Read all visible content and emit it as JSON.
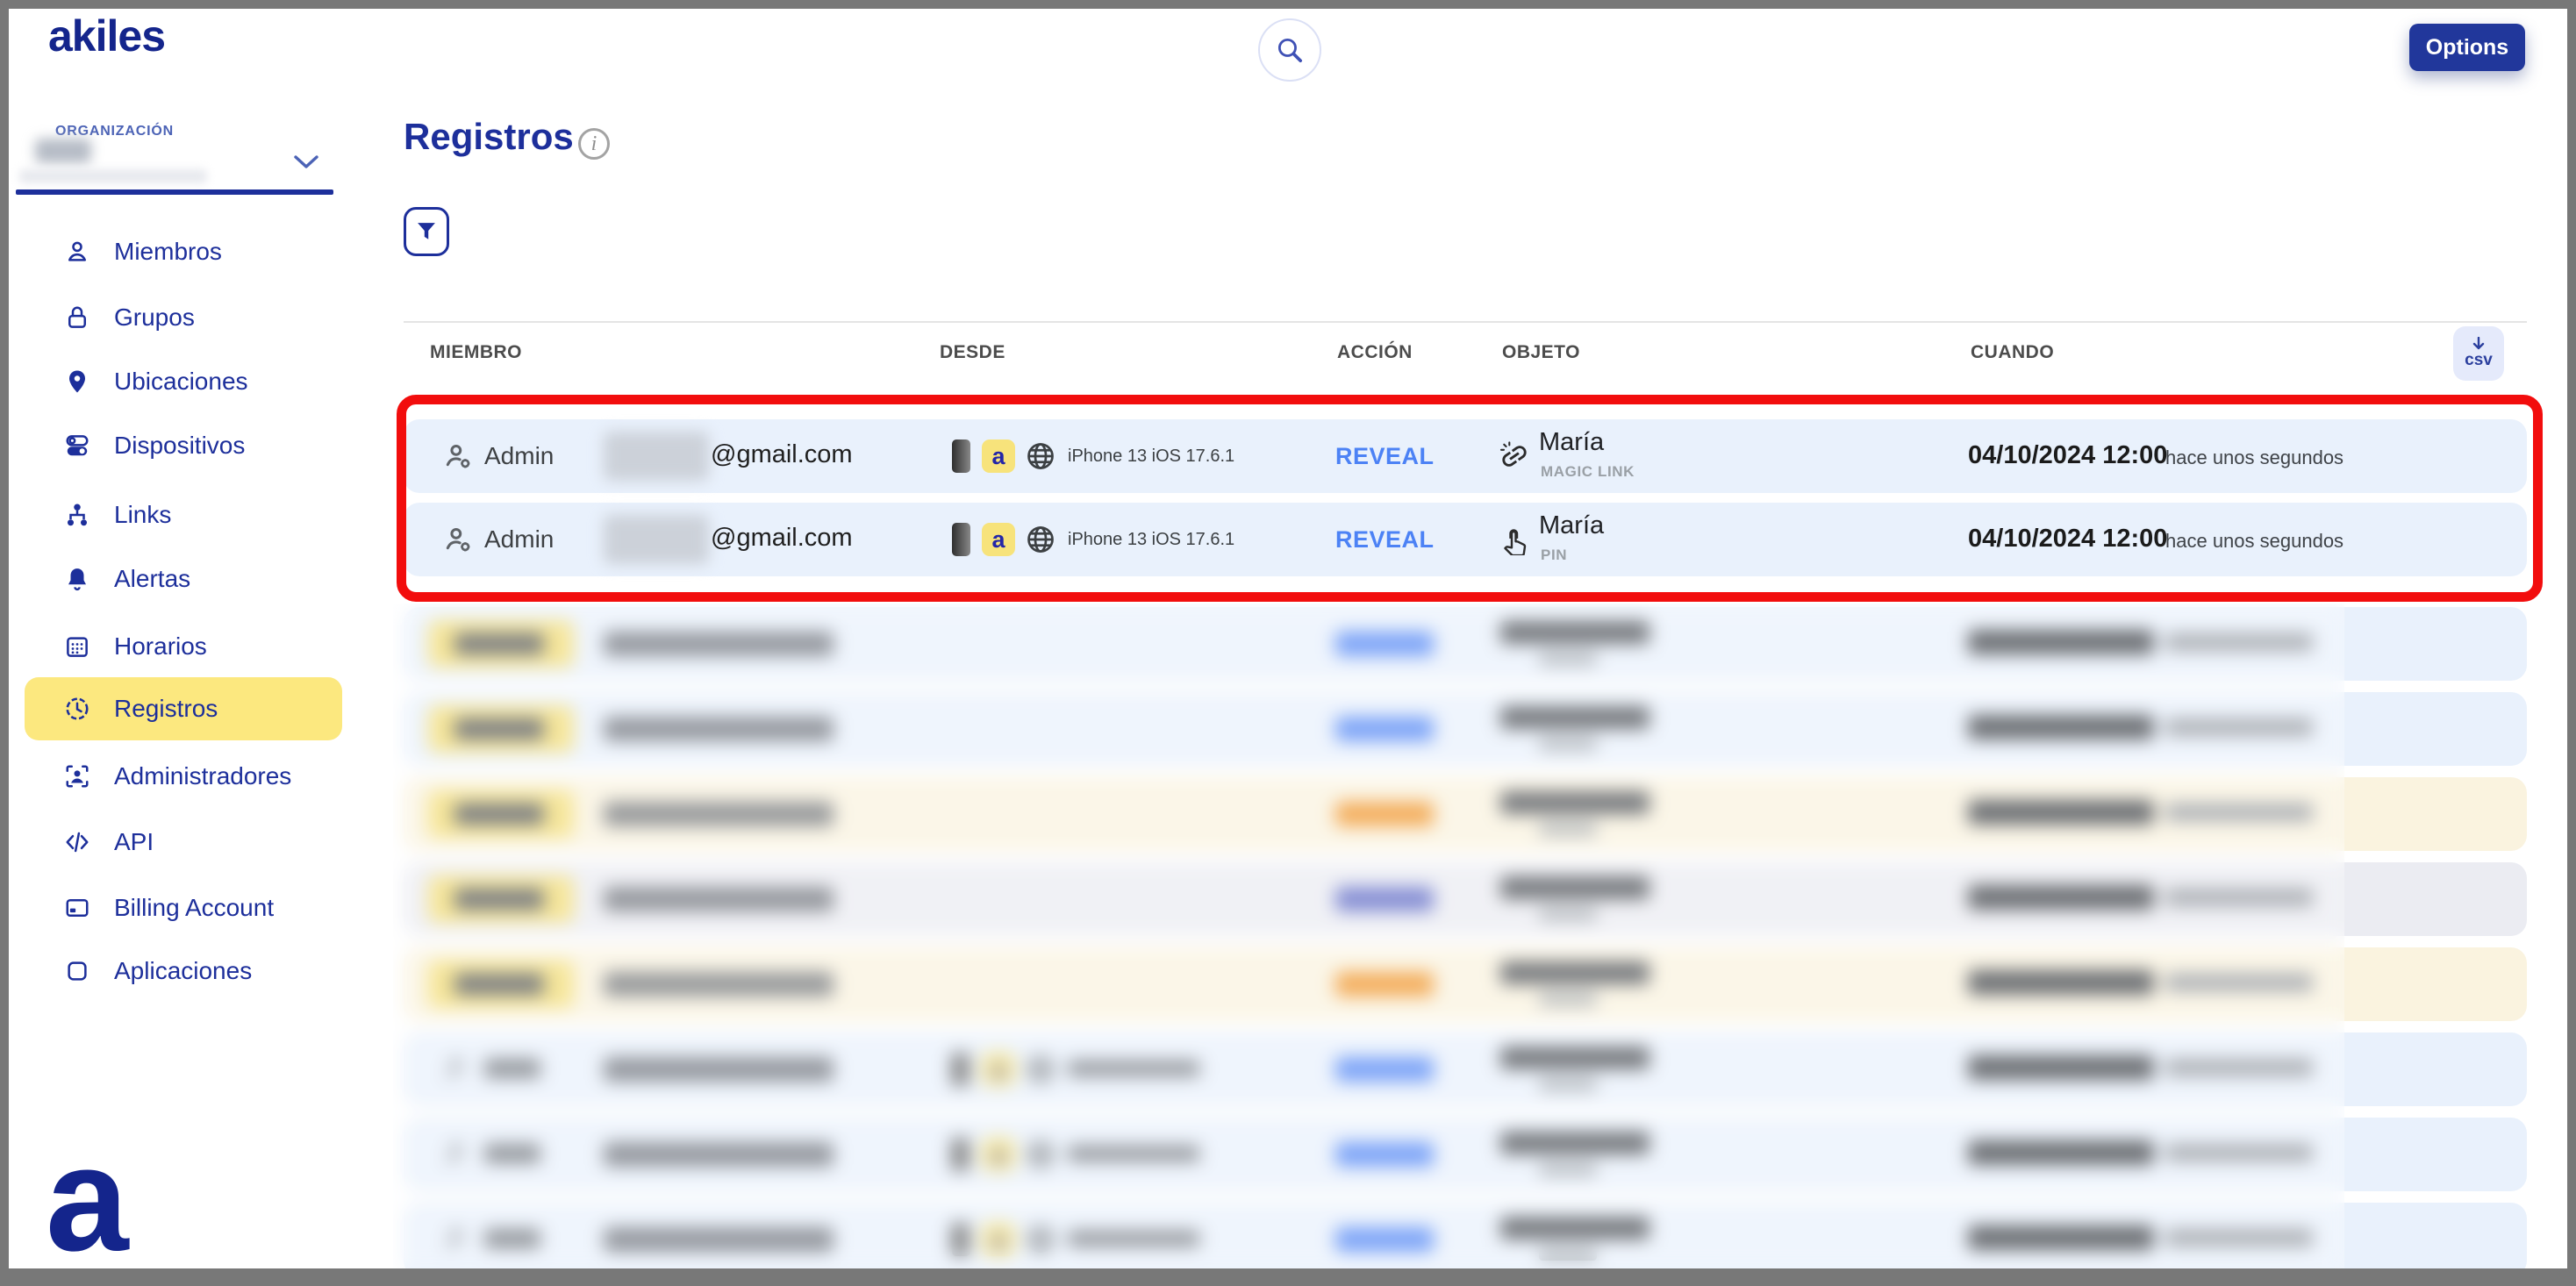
{
  "brand": {
    "logo_text": "akiles",
    "footer_mark": "a"
  },
  "topbar": {
    "options_button": "Options"
  },
  "sidebar": {
    "org_label": "ORGANIZACIÓN",
    "items": [
      {
        "label": "Miembros",
        "icon": "person-icon",
        "active": false
      },
      {
        "label": "Grupos",
        "icon": "lock-icon",
        "active": false
      },
      {
        "label": "Ubicaciones",
        "icon": "map-pin-icon",
        "active": false
      },
      {
        "label": "Dispositivos",
        "icon": "toggles-icon",
        "active": false
      },
      {
        "label": "Links",
        "icon": "network-icon",
        "active": false
      },
      {
        "label": "Alertas",
        "icon": "bell-icon",
        "active": false
      },
      {
        "label": "Horarios",
        "icon": "calendar-icon",
        "active": false
      },
      {
        "label": "Registros",
        "icon": "clock-icon",
        "active": true
      },
      {
        "label": "Administradores",
        "icon": "admin-badge-icon",
        "active": false
      },
      {
        "label": "API",
        "icon": "code-icon",
        "active": false
      },
      {
        "label": "Billing Account",
        "icon": "credit-card-icon",
        "active": false
      },
      {
        "label": "Aplicaciones",
        "icon": "app-icon",
        "active": false
      }
    ]
  },
  "page": {
    "title": "Registros"
  },
  "table": {
    "headers": [
      "MIEMBRO",
      "DESDE",
      "ACCIÓN",
      "OBJETO",
      "CUANDO"
    ],
    "csv_button": "csv",
    "rows": [
      {
        "member": "Admin",
        "email_visible": "@gmail.com",
        "device": "iPhone 13 iOS 17.6.1",
        "action": "REVEAL",
        "object_name": "María",
        "object_type": "MAGIC LINK",
        "object_icon": "magic-link-icon",
        "date": "04/10/2024 12:00",
        "ago": "hace unos segundos"
      },
      {
        "member": "Admin",
        "email_visible": "@gmail.com",
        "device": "iPhone 13 iOS 17.6.1",
        "action": "REVEAL",
        "object_name": "María",
        "object_type": "PIN",
        "object_icon": "hand-pointer-icon",
        "date": "04/10/2024 12:00",
        "ago": "hace unos segundos"
      }
    ],
    "blurred_rows": [
      {
        "bg": "blue",
        "member_style": "chip",
        "action_color": "blue"
      },
      {
        "bg": "blue",
        "member_style": "chip",
        "action_color": "blue"
      },
      {
        "bg": "cream",
        "member_style": "chip",
        "action_color": "orange"
      },
      {
        "bg": "gray",
        "member_style": "chip",
        "action_color": "indigo"
      },
      {
        "bg": "cream",
        "member_style": "chip",
        "action_color": "orange"
      },
      {
        "bg": "blue",
        "member_style": "device",
        "action_color": "blue"
      },
      {
        "bg": "blue",
        "member_style": "device",
        "action_color": "blue"
      },
      {
        "bg": "blue",
        "member_style": "device",
        "action_color": "blue"
      }
    ]
  },
  "colors": {
    "navy": "#1d2f9b",
    "accent_blue": "#4c82f5",
    "highlight_yellow": "#fce87f",
    "row_blue": "#e9f1fc",
    "row_cream": "#faf3df",
    "row_gray": "#ebecf2",
    "annotation_red": "#f20d0d",
    "options_bg": "#21379b",
    "app_chip_yellow": "#f7e37b"
  }
}
